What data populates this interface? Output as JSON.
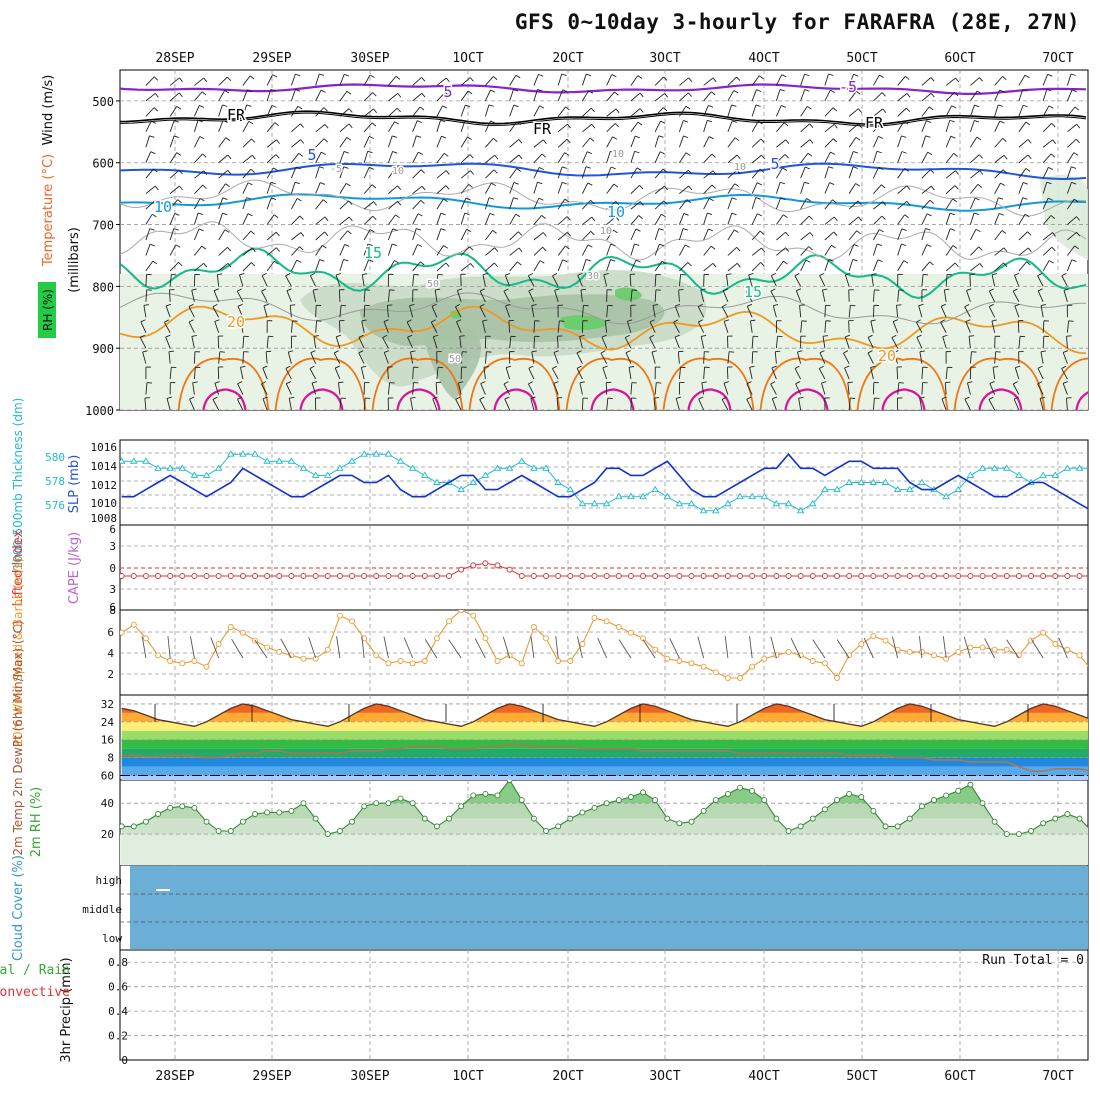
{
  "title": "GFS 0~10day 3-hourly for FARAFRA (28E, 27N)",
  "dates": [
    "28SEP",
    "29SEP",
    "30SEP",
    "1OCT",
    "2OCT",
    "3OCT",
    "4OCT",
    "5OCT",
    "6OCT",
    "7OCT"
  ],
  "colors": {
    "temp5": "#8822cc",
    "freezing": "#000000",
    "temp5b": "#2255dd",
    "temp10": "#1199dd",
    "temp15": "#11bb88",
    "temp20": "#ee9922",
    "temp25": "#ee7711",
    "temp30": "#dd1199",
    "rh": "#77aa77",
    "slp": "#1133cc",
    "thickness": "#22bbcc",
    "li": "#dd3333",
    "wind10m": "#ee9933",
    "rh2m": "#44aa44",
    "cloud": "#6baed6"
  },
  "chart_data": [
    {
      "type": "line",
      "panel": "upper-air",
      "ylabel_wind": "Wind (m/s)",
      "ylabel_temp": "Temperature (°C)",
      "ylabel_rh": "RH (%)",
      "ylabel_units": "(millibars)",
      "y_ticks": [
        500,
        600,
        700,
        800,
        900,
        1000
      ],
      "ylim": [
        450,
        1000
      ],
      "contour_labels": [
        "5",
        "FR",
        "FR",
        "FR",
        "5",
        "10",
        "10",
        "10",
        "15",
        "15",
        "20",
        "20",
        "10",
        "10",
        "10",
        "30",
        "50",
        "50",
        "-5",
        "-5",
        "5"
      ],
      "isotherm_levels_mb": {
        "-5": 478,
        "FR": 525,
        "5": 608,
        "10": 660,
        "15": 770,
        "20": 860
      }
    },
    {
      "type": "line",
      "panel": "thickness-slp",
      "ylabel_left": "1000-500mb Thickness (dm)",
      "ylabel_right": "SLP (mb)",
      "left_ticks": [
        "580",
        "578",
        "576"
      ],
      "right_ticks": [
        "1016",
        "1014",
        "1012",
        "1010",
        "1008"
      ],
      "series": [
        {
          "name": "SLP",
          "values": [
            1010,
            1010,
            1011,
            1012,
            1013,
            1012,
            1011,
            1010,
            1011,
            1012,
            1014,
            1013,
            1012,
            1011,
            1010,
            1010,
            1011,
            1012,
            1013,
            1013,
            1012,
            1012,
            1013,
            1011,
            1010,
            1010,
            1011,
            1012,
            1013,
            1013,
            1011,
            1011,
            1012,
            1013,
            1012,
            1011,
            1010,
            1010,
            1011,
            1012,
            1014,
            1014,
            1013,
            1013,
            1014,
            1015,
            1013,
            1011,
            1010,
            1010,
            1011,
            1012,
            1013,
            1014,
            1014,
            1016,
            1014,
            1014,
            1013,
            1014,
            1015,
            1015,
            1014,
            1014,
            1014,
            1012,
            1011,
            1011,
            1012,
            1013,
            1012,
            1011,
            1010,
            1010,
            1011,
            1012,
            1012,
            1011,
            1010,
            1009,
            1008,
            1009,
            1011,
            1012
          ]
        },
        {
          "name": "Thickness",
          "values": [
            1015,
            1015,
            1015,
            1014,
            1014,
            1014,
            1013,
            1013,
            1014,
            1016,
            1016,
            1016,
            1015,
            1015,
            1015,
            1014,
            1013,
            1013,
            1014,
            1015,
            1016,
            1016,
            1016,
            1015,
            1014,
            1013,
            1012,
            1012,
            1011,
            1012,
            1013,
            1014,
            1014,
            1015,
            1014,
            1014,
            1012,
            1011,
            1009,
            1009,
            1009,
            1010,
            1010,
            1010,
            1011,
            1010,
            1009,
            1009,
            1008,
            1008,
            1009,
            1010,
            1010,
            1010,
            1009,
            1009,
            1008,
            1009,
            1011,
            1011,
            1012,
            1012,
            1012,
            1012,
            1011,
            1011,
            1012,
            1011,
            1010,
            1011,
            1013,
            1014,
            1014,
            1014,
            1013,
            1012,
            1013,
            1013,
            1014,
            1014,
            1014,
            1014,
            1013,
            1013
          ]
        }
      ]
    },
    {
      "type": "line",
      "panel": "stability",
      "ylabel_left": "Lifted Index",
      "ylabel_right": "CAPE (J/kg)",
      "left_ticks": [
        "6",
        "3",
        "0",
        "3",
        "6"
      ],
      "right_ticks": [
        "8"
      ],
      "series": [
        {
          "name": "Lifted Index",
          "values": [
            null,
            null,
            null,
            null,
            null,
            null,
            null,
            null,
            null,
            null,
            null,
            null,
            null,
            null,
            null,
            null,
            null,
            null,
            null,
            null,
            null,
            null,
            null,
            null,
            null,
            null,
            null,
            null,
            null,
            null,
            null,
            null,
            null,
            null,
            null,
            null,
            null,
            null,
            null,
            null,
            null,
            null,
            null,
            null,
            null,
            null,
            null,
            null,
            null,
            null,
            null,
            null,
            null,
            null,
            null,
            null,
            null,
            null,
            null,
            null,
            null,
            null,
            null,
            null,
            null,
            null,
            null,
            null,
            null,
            null,
            null,
            null,
            null,
            null,
            null,
            null,
            null,
            null,
            null,
            null,
            null,
            null,
            null,
            null
          ]
        },
        {
          "name": "CAPE",
          "values": [
            0,
            0,
            0,
            0,
            0,
            0,
            0,
            0,
            0,
            0,
            0,
            0,
            0,
            0,
            0,
            0,
            0,
            0,
            0,
            0,
            0,
            0,
            0,
            0,
            0,
            0,
            0,
            0,
            1.5,
            2.5,
            3,
            2.5,
            1.5,
            0,
            0,
            0,
            0,
            0,
            0,
            0,
            0,
            0,
            0,
            0,
            0,
            0,
            0,
            0,
            0,
            0,
            0,
            0,
            0,
            0,
            0,
            0,
            0,
            0,
            0,
            0,
            0,
            0,
            0,
            0,
            0,
            0,
            0,
            0,
            0,
            0,
            0,
            0,
            0,
            0,
            0,
            0,
            0,
            0,
            0,
            0,
            0,
            0,
            0,
            0
          ]
        }
      ]
    },
    {
      "type": "line",
      "panel": "wind10m",
      "ylabel": "10m Wind Speed & Barbs (m/s)",
      "y_ticks": [
        "6",
        "4",
        "2"
      ],
      "ylim": [
        0,
        7.5
      ],
      "series": [
        {
          "name": "10m Wind Speed",
          "values": [
            5.5,
            6.2,
            5,
            3.5,
            3,
            2.8,
            3,
            2.5,
            4.5,
            6,
            5.5,
            4.8,
            4.2,
            3.8,
            3.5,
            3.2,
            3.2,
            4,
            7,
            6.5,
            5,
            3.5,
            2.8,
            3,
            2.8,
            3,
            5,
            6.5,
            7.5,
            7,
            5,
            3,
            3.5,
            2.8,
            6,
            5,
            3,
            3,
            4.5,
            6.8,
            6.5,
            6,
            5.5,
            5,
            4,
            3.2,
            3,
            2.8,
            2.5,
            2,
            1.5,
            1.5,
            2.5,
            3.2,
            3.5,
            3.8,
            3.5,
            3,
            2.8,
            1.5,
            3.5,
            4.5,
            5.2,
            4.8,
            4,
            3.8,
            3.8,
            3.5,
            3.2,
            3.8,
            4.2,
            4.2,
            4,
            4,
            3.5,
            4.8,
            5.5,
            4.5,
            4,
            3.5,
            2.2,
            2,
            2.5,
            3.5,
            3.8,
            3.2,
            2.5,
            3,
            1.8,
            1.2,
            1.5,
            3,
            4.5,
            4.8,
            4.2,
            3.5,
            3,
            2.5,
            1.8,
            1.5
          ]
        }
      ]
    },
    {
      "type": "area",
      "panel": "temp2m",
      "ylabel": "2m Temp 2m DewPt (6hr Min/Max) (°C)",
      "y_ticks": [
        "32",
        "24",
        "16",
        "8",
        "60"
      ],
      "ylim": [
        -2,
        36
      ],
      "series": [
        {
          "name": "2m Temp",
          "values": [
            30,
            29,
            27,
            25,
            24,
            23,
            22,
            24,
            27,
            30,
            32,
            31,
            29,
            27,
            25,
            24,
            23,
            22,
            24,
            27,
            30,
            32,
            31,
            29,
            27,
            25,
            24,
            23,
            22,
            24,
            27,
            30,
            32,
            31,
            29,
            27,
            25,
            24,
            23,
            22,
            24,
            27,
            30,
            32,
            31,
            29,
            27,
            25,
            24,
            23,
            22,
            24,
            27,
            30,
            32,
            31,
            29,
            27,
            25,
            24,
            23,
            22,
            24,
            27,
            30,
            32,
            31,
            29,
            27,
            25,
            24,
            23,
            22,
            24,
            27,
            30,
            32,
            31,
            29,
            27,
            25,
            24,
            23,
            25
          ]
        },
        {
          "name": "2m DewPt",
          "values": [
            9,
            9,
            8.5,
            8.5,
            9,
            9,
            8.5,
            8,
            8,
            9,
            10,
            10,
            11,
            11,
            10,
            10,
            10,
            10,
            10,
            11,
            11,
            11,
            12,
            12,
            13,
            13,
            13,
            12,
            12,
            12,
            13,
            13,
            14,
            14,
            13,
            13,
            13,
            13,
            12,
            12,
            12,
            12,
            12,
            11,
            11,
            11,
            11,
            11,
            11,
            11,
            11,
            10,
            10,
            10,
            10,
            10,
            10,
            10,
            10,
            10,
            9,
            9,
            9,
            9,
            8,
            8,
            8,
            7,
            7,
            7,
            6,
            6,
            6,
            6,
            4,
            2,
            2,
            3,
            3,
            3,
            2,
            0,
            0,
            1,
            2,
            3,
            4,
            5
          ]
        }
      ]
    },
    {
      "type": "area",
      "panel": "rh2m",
      "ylabel": "2m RH (%)",
      "y_ticks": [
        "40",
        "20"
      ],
      "ylim": [
        0,
        55
      ],
      "series": [
        {
          "name": "2m RH",
          "values": [
            25,
            25,
            28,
            33,
            37,
            38,
            37,
            28,
            22,
            22,
            28,
            33,
            34,
            34,
            35,
            40,
            30,
            20,
            22,
            28,
            38,
            40,
            40,
            43,
            40,
            30,
            25,
            30,
            38,
            45,
            46,
            45,
            55,
            42,
            30,
            22,
            25,
            30,
            34,
            37,
            40,
            42,
            44,
            47,
            42,
            30,
            27,
            28,
            35,
            42,
            46,
            50,
            48,
            42,
            30,
            22,
            25,
            30,
            36,
            42,
            46,
            44,
            35,
            25,
            25,
            30,
            38,
            42,
            45,
            48,
            52,
            40,
            28,
            20,
            20,
            22,
            27,
            30,
            33,
            30,
            22,
            16,
            15,
            20,
            25,
            30,
            35,
            30,
            28
          ]
        }
      ]
    },
    {
      "type": "area",
      "panel": "cloud",
      "ylabel": "Cloud Cover (%)",
      "levels": [
        "high",
        "middle",
        "low"
      ],
      "values": [
        0,
        0,
        0
      ]
    },
    {
      "type": "bar",
      "panel": "precip",
      "ylabel": "3hr Precip (mm)",
      "legend_total_rain": "Total / Rain",
      "legend_convective": "Convective",
      "run_total": "Run Total = 0",
      "y_ticks": [
        "0.8",
        "0.6",
        "0.4",
        "0.2",
        "0"
      ],
      "ylim": [
        0,
        0.9
      ],
      "values": []
    }
  ]
}
